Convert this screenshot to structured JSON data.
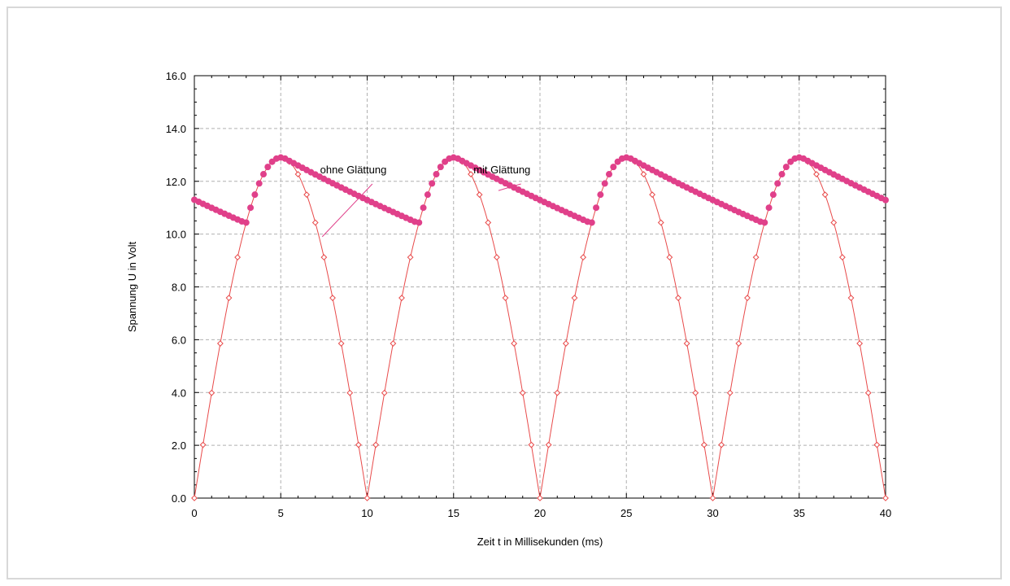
{
  "chart_data": {
    "type": "line",
    "title": "",
    "xlabel": "Zeit t  in Millisekunden (ms)",
    "ylabel": "Spannung U in Volt",
    "xlim": [
      0,
      40
    ],
    "ylim": [
      0,
      16
    ],
    "x_ticks": [
      "0",
      "5",
      "10",
      "15",
      "20",
      "25",
      "30",
      "35",
      "40"
    ],
    "y_ticks": [
      "0.0",
      "2.0",
      "4.0",
      "6.0",
      "8.0",
      "10.0",
      "12.0",
      "14.0",
      "16.0"
    ],
    "grid": true,
    "annotations": [
      {
        "text": "ohne Glättung",
        "series": "ohne Glättung",
        "at": [
          9.2,
          12.3
        ]
      },
      {
        "text": "mit Glättung",
        "series": "mit Glättung",
        "at": [
          17.8,
          12.3
        ]
      }
    ],
    "series": [
      {
        "name": "ohne Glättung",
        "color": "#e84a4a",
        "marker": "diamond-open",
        "style": "line",
        "formula": "12.9*|sin(pi*t/10)|",
        "peak": 12.9,
        "period_ms": 10,
        "x_range": [
          0,
          40
        ],
        "step": 0.5
      },
      {
        "name": "mit Glättung",
        "color": "#e0408a",
        "marker": "filled-circle",
        "style": "markers",
        "formula": "rectified sine with exponential capacitor discharge (peak 12.9 V at 5, 15, 25, 35 ms; min ~10.5 V)",
        "peak": 12.9,
        "start_value": 11.3,
        "decay_per_ms": 0.0274,
        "x_range": [
          0,
          40
        ],
        "step": 0.25
      }
    ],
    "colors": {
      "grid": "#b0b0b0",
      "axis": "#000000",
      "pointer": "#e0408a"
    }
  }
}
